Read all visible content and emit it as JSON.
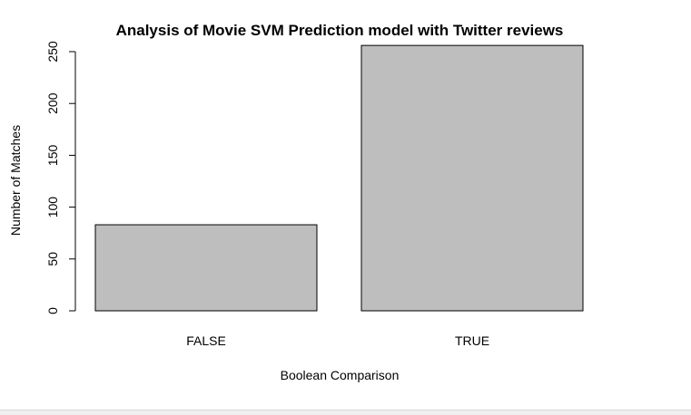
{
  "chart_data": {
    "type": "bar",
    "title": "Analysis of Movie SVM Prediction model with Twitter reviews",
    "xlabel": "Boolean Comparison",
    "ylabel": "Number of Matches",
    "categories": [
      "FALSE",
      "TRUE"
    ],
    "values": [
      83,
      256
    ],
    "ylim": [
      0,
      250
    ],
    "yticks": [
      "0",
      "50",
      "100",
      "150",
      "200",
      "250"
    ],
    "bar_color": "#bebebe",
    "bar_border_color": "#000000",
    "grid": false
  }
}
